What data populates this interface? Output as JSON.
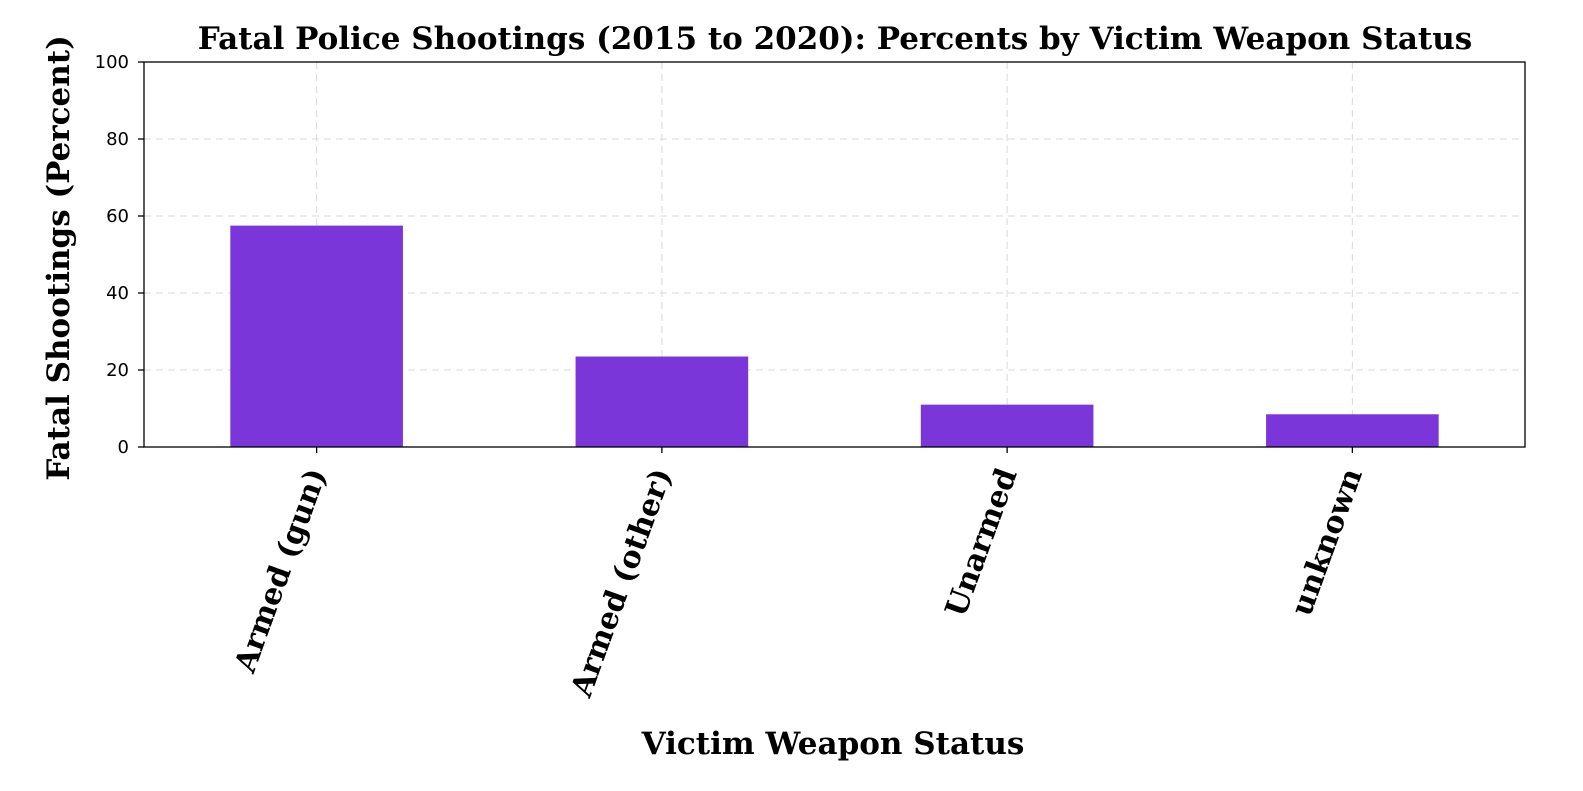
{
  "chart_data": {
    "type": "bar",
    "title": "Fatal Police Shootings (2015 to 2020): Percents by Victim Weapon Status",
    "xlabel": "Victim Weapon Status",
    "ylabel": "Fatal Shootings (Percent)",
    "categories": [
      "Armed (gun)",
      "Armed (other)",
      "Unarmed",
      "unknown"
    ],
    "values": [
      57.5,
      23.5,
      11.0,
      8.5
    ],
    "ylim": [
      0,
      100
    ],
    "yticks": [
      0,
      20,
      40,
      60,
      80,
      100
    ],
    "grid": true,
    "bar_color": "#7b36d9"
  }
}
